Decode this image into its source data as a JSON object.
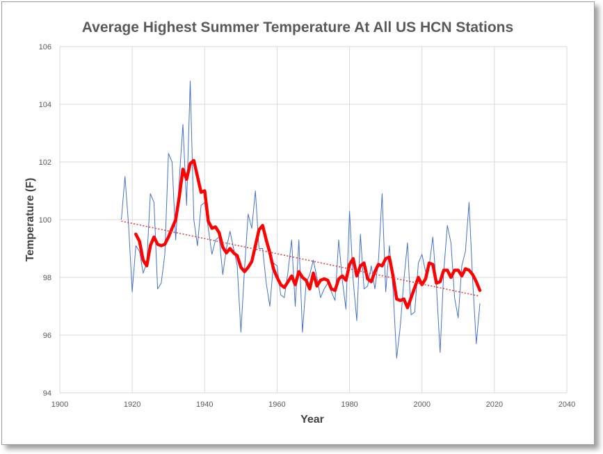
{
  "chart_data": {
    "type": "line",
    "title": "Average Highest Summer Temperature At All US HCN Stations",
    "xlabel": "Year",
    "ylabel": "Temperature (F)",
    "xlim": [
      1900,
      2040
    ],
    "ylim": [
      94,
      106
    ],
    "x_ticks": [
      1900,
      1920,
      1940,
      1960,
      1980,
      2000,
      2020,
      2040
    ],
    "y_ticks": [
      94,
      96,
      98,
      100,
      102,
      104,
      106
    ],
    "grid": true,
    "legend": "none",
    "series": [
      {
        "style": "annual",
        "color": "#4472c4",
        "x": [
          1917,
          1918,
          1919,
          1920,
          1921,
          1922,
          1923,
          1924,
          1925,
          1926,
          1927,
          1928,
          1929,
          1930,
          1931,
          1932,
          1933,
          1934,
          1935,
          1936,
          1937,
          1938,
          1939,
          1940,
          1941,
          1942,
          1943,
          1944,
          1945,
          1946,
          1947,
          1948,
          1949,
          1950,
          1951,
          1952,
          1953,
          1954,
          1955,
          1956,
          1957,
          1958,
          1959,
          1960,
          1961,
          1962,
          1963,
          1964,
          1965,
          1966,
          1967,
          1968,
          1969,
          1970,
          1971,
          1972,
          1973,
          1974,
          1975,
          1976,
          1977,
          1978,
          1979,
          1980,
          1981,
          1982,
          1983,
          1984,
          1985,
          1986,
          1987,
          1988,
          1989,
          1990,
          1991,
          1992,
          1993,
          1994,
          1995,
          1996,
          1997,
          1998,
          1999,
          2000,
          2001,
          2002,
          2003,
          2004,
          2005,
          2006,
          2007,
          2008,
          2009,
          2010,
          2011,
          2012,
          2013,
          2014,
          2015,
          2016
        ],
        "y": [
          100.0,
          101.5,
          99.8,
          97.5,
          99.1,
          98.9,
          98.15,
          98.5,
          100.9,
          100.6,
          97.6,
          97.8,
          98.8,
          102.3,
          102.0,
          99.3,
          101.4,
          103.3,
          100.5,
          104.8,
          100.0,
          99.1,
          100.5,
          100.6,
          99.7,
          98.8,
          99.3,
          99.4,
          98.1,
          99.0,
          99.6,
          99.0,
          98.4,
          96.1,
          98.3,
          100.2,
          99.7,
          101.0,
          99.0,
          99.0,
          97.8,
          97.0,
          98.5,
          98.4,
          97.4,
          97.3,
          98.2,
          99.3,
          97.0,
          99.3,
          96.1,
          97.8,
          98.1,
          98.6,
          98.0,
          97.3,
          97.6,
          97.8,
          97.5,
          97.2,
          99.3,
          97.9,
          96.9,
          100.3,
          97.9,
          96.5,
          99.5,
          97.6,
          97.7,
          98.4,
          97.6,
          98.6,
          100.9,
          97.5,
          99.1,
          97.6,
          95.2,
          96.3,
          97.9,
          99.2,
          96.7,
          96.8,
          98.5,
          98.8,
          98.2,
          98.4,
          99.4,
          97.7,
          95.4,
          98.2,
          99.8,
          99.2,
          97.3,
          96.6,
          98.4,
          98.9,
          100.6,
          97.9,
          95.7,
          97.1
        ]
      },
      {
        "style": "moving-average",
        "color": "#ff0000",
        "x": [
          1921,
          1922,
          1923,
          1924,
          1925,
          1926,
          1927,
          1928,
          1929,
          1930,
          1931,
          1932,
          1933,
          1934,
          1935,
          1936,
          1937,
          1938,
          1939,
          1940,
          1941,
          1942,
          1943,
          1944,
          1945,
          1946,
          1947,
          1948,
          1949,
          1950,
          1951,
          1952,
          1953,
          1954,
          1955,
          1956,
          1957,
          1958,
          1959,
          1960,
          1961,
          1962,
          1963,
          1964,
          1965,
          1966,
          1967,
          1968,
          1969,
          1970,
          1971,
          1972,
          1973,
          1974,
          1975,
          1976,
          1977,
          1978,
          1979,
          1980,
          1981,
          1982,
          1983,
          1984,
          1985,
          1986,
          1987,
          1988,
          1989,
          1990,
          1991,
          1992,
          1993,
          1994,
          1995,
          1996,
          1997,
          1998,
          1999,
          2000,
          2001,
          2002,
          2003,
          2004,
          2005,
          2006,
          2007,
          2008,
          2009,
          2010,
          2011,
          2012,
          2013,
          2014,
          2015,
          2016
        ],
        "y": [
          99.5,
          99.25,
          98.6,
          98.4,
          99.1,
          99.4,
          99.15,
          99.1,
          99.15,
          99.4,
          99.7,
          100.0,
          100.8,
          101.75,
          101.4,
          101.95,
          102.05,
          101.5,
          100.95,
          101.0,
          99.95,
          99.7,
          99.75,
          99.55,
          99.05,
          98.85,
          99.0,
          98.85,
          98.75,
          98.35,
          98.2,
          98.35,
          98.55,
          99.1,
          99.65,
          99.8,
          99.3,
          98.85,
          98.3,
          98.0,
          97.75,
          97.65,
          97.85,
          98.05,
          97.75,
          98.2,
          98.0,
          97.9,
          97.6,
          98.15,
          97.7,
          97.9,
          97.95,
          97.9,
          97.6,
          97.55,
          97.95,
          98.05,
          97.9,
          98.45,
          98.65,
          98.05,
          98.4,
          98.5,
          97.95,
          97.85,
          98.2,
          98.45,
          98.4,
          98.65,
          98.7,
          98.05,
          97.25,
          97.2,
          97.25,
          96.95,
          97.3,
          97.65,
          98.0,
          97.75,
          97.95,
          98.5,
          98.45,
          97.8,
          97.85,
          98.25,
          98.25,
          98.0,
          98.25,
          98.25,
          98.05,
          98.3,
          98.25,
          98.1,
          97.85,
          97.55
        ]
      },
      {
        "style": "trend",
        "color": "#e04040",
        "x": [
          1917,
          2016
        ],
        "y": [
          99.95,
          97.35
        ]
      }
    ]
  }
}
